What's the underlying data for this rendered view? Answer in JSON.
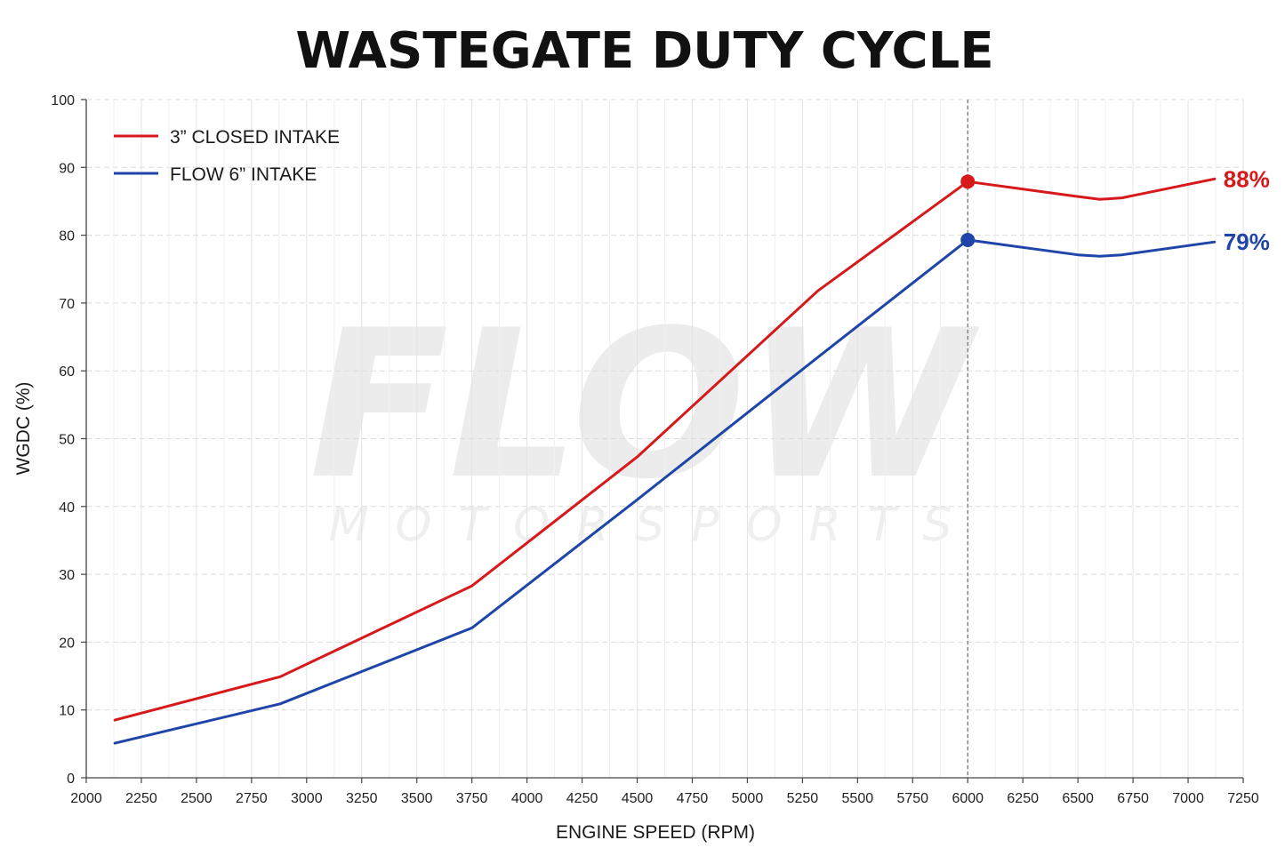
{
  "chart_data": {
    "type": "line",
    "title": "WASTEGATE DUTY CYCLE",
    "xlabel": "ENGINE SPEED (RPM)",
    "ylabel": "WGDC (%)",
    "xlim": [
      2000,
      7250
    ],
    "ylim": [
      0,
      100
    ],
    "x_ticks": [
      2000,
      2250,
      2500,
      2750,
      3000,
      3250,
      3500,
      3750,
      4000,
      4250,
      4500,
      4750,
      5000,
      5250,
      5500,
      5750,
      6000,
      6250,
      6500,
      6750,
      7000,
      7250
    ],
    "y_ticks": [
      0,
      10,
      20,
      30,
      40,
      50,
      60,
      70,
      80,
      90,
      100
    ],
    "grid": true,
    "legend_position": "top-left",
    "reference_line_x": 6000,
    "watermark": {
      "main": "FLOW",
      "sub": "MOTORSPORTS"
    },
    "series": [
      {
        "name": "3” CLOSED INTAKE",
        "color": "#d7191c",
        "x": [
          2130,
          2880,
          3750,
          4500,
          5320,
          6000,
          6500,
          6600,
          6700,
          7120
        ],
        "y": [
          8.5,
          14.9,
          28.3,
          47.3,
          71.8,
          87.9,
          85.7,
          85.3,
          85.5,
          88.3
        ],
        "end_label": "88%",
        "marker_x": 6000,
        "marker_y": 87.9
      },
      {
        "name": "FLOW 6” INTAKE",
        "color": "#1f45a8",
        "x": [
          2130,
          2880,
          3750,
          4500,
          5320,
          6000,
          6500,
          6600,
          6700,
          7120
        ],
        "y": [
          5.1,
          10.9,
          22.1,
          41.0,
          62.0,
          79.3,
          77.1,
          76.9,
          77.1,
          79.0
        ],
        "end_label": "79%",
        "marker_x": 6000,
        "marker_y": 79.3
      }
    ]
  }
}
